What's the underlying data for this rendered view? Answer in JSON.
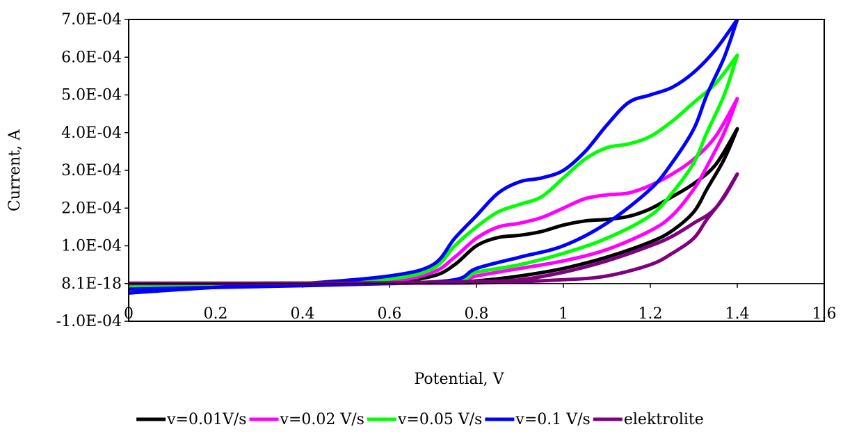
{
  "chart_data": {
    "type": "line",
    "title": "",
    "xlabel": "Potential,  V",
    "ylabel": "Current, A",
    "xlim": [
      0,
      1.6
    ],
    "ylim": [
      -0.0001,
      0.0007
    ],
    "x_ticks": [
      0,
      0.2,
      0.4,
      0.6,
      0.8,
      1,
      1.2,
      1.4,
      1.6
    ],
    "x_tick_labels": [
      "0",
      "0.2",
      "0.4",
      "0.6",
      "0.8",
      "1",
      "1.2",
      "1.4",
      "1.6"
    ],
    "y_ticks": [
      -0.0001,
      0.0,
      0.0001,
      0.0002,
      0.0003,
      0.0004,
      0.0005,
      0.0006,
      0.0007
    ],
    "y_tick_labels": [
      "-1.0E-04",
      "8.1E-18",
      "1.0E-04",
      "2.0E-04",
      "3.0E-04",
      "4.0E-04",
      "5.0E-04",
      "6.0E-04",
      "7.0E-04"
    ],
    "grid": false,
    "legend_position": "bottom",
    "series": [
      {
        "name": "v=0.01V/s",
        "color": "#000000",
        "forward": [
          [
            0,
            -5e-06
          ],
          [
            0.2,
            -2e-06
          ],
          [
            0.4,
            0.0
          ],
          [
            0.6,
            5e-06
          ],
          [
            0.7,
            2e-05
          ],
          [
            0.75,
            5e-05
          ],
          [
            0.8,
            0.0001
          ],
          [
            0.85,
            0.000122
          ],
          [
            0.9,
            0.000128
          ],
          [
            0.95,
            0.000138
          ],
          [
            1.0,
            0.000155
          ],
          [
            1.05,
            0.000166
          ],
          [
            1.1,
            0.00017
          ],
          [
            1.15,
            0.000178
          ],
          [
            1.2,
            0.000198
          ],
          [
            1.25,
            0.00023
          ],
          [
            1.3,
            0.000265
          ],
          [
            1.35,
            0.000315
          ],
          [
            1.4,
            0.00041
          ]
        ],
        "reverse": [
          [
            1.4,
            0.00041
          ],
          [
            1.37,
            0.00033
          ],
          [
            1.33,
            0.00025
          ],
          [
            1.3,
            0.00019
          ],
          [
            1.25,
            0.00014
          ],
          [
            1.2,
            0.00011
          ],
          [
            1.1,
            7e-05
          ],
          [
            1.0,
            4e-05
          ],
          [
            0.9,
            2e-05
          ],
          [
            0.8,
            7e-06
          ],
          [
            0.7,
            2e-06
          ],
          [
            0.5,
            0.0
          ],
          [
            0.2,
            -2e-06
          ],
          [
            0,
            -4e-06
          ]
        ]
      },
      {
        "name": "v=0.02 V/s",
        "color": "#ff00ff",
        "forward": [
          [
            0,
            -5e-06
          ],
          [
            0.2,
            -2e-06
          ],
          [
            0.4,
            0.0
          ],
          [
            0.6,
            6e-06
          ],
          [
            0.7,
            3e-05
          ],
          [
            0.75,
            7e-05
          ],
          [
            0.8,
            0.00012
          ],
          [
            0.85,
            0.00015
          ],
          [
            0.9,
            0.00016
          ],
          [
            0.95,
            0.000175
          ],
          [
            1.0,
            0.0002
          ],
          [
            1.05,
            0.000225
          ],
          [
            1.1,
            0.000235
          ],
          [
            1.15,
            0.00024
          ],
          [
            1.2,
            0.00026
          ],
          [
            1.25,
            0.00029
          ],
          [
            1.3,
            0.00033
          ],
          [
            1.35,
            0.00039
          ],
          [
            1.4,
            0.00049
          ]
        ],
        "reverse": [
          [
            1.4,
            0.00049
          ],
          [
            1.37,
            0.0004
          ],
          [
            1.33,
            0.00031
          ],
          [
            1.3,
            0.00025
          ],
          [
            1.25,
            0.00018
          ],
          [
            1.2,
            0.00014
          ],
          [
            1.1,
            9e-05
          ],
          [
            1.0,
            6e-05
          ],
          [
            0.9,
            4e-05
          ],
          [
            0.8,
            2e-05
          ],
          [
            0.75,
            5e-06
          ],
          [
            0.6,
            0.0
          ],
          [
            0.3,
            -3e-06
          ],
          [
            0,
            -5e-06
          ]
        ]
      },
      {
        "name": "v=0.05 V/s",
        "color": "#00ff00",
        "forward": [
          [
            0,
            -8e-06
          ],
          [
            0.2,
            -4e-06
          ],
          [
            0.4,
            0.0
          ],
          [
            0.6,
            1.2e-05
          ],
          [
            0.7,
            4e-05
          ],
          [
            0.75,
            0.0001
          ],
          [
            0.8,
            0.00015
          ],
          [
            0.85,
            0.00019
          ],
          [
            0.9,
            0.00021
          ],
          [
            0.95,
            0.00023
          ],
          [
            1.0,
            0.00028
          ],
          [
            1.05,
            0.00033
          ],
          [
            1.1,
            0.00036
          ],
          [
            1.15,
            0.00037
          ],
          [
            1.2,
            0.00039
          ],
          [
            1.25,
            0.00043
          ],
          [
            1.3,
            0.00048
          ],
          [
            1.35,
            0.00053
          ],
          [
            1.4,
            0.000605
          ]
        ],
        "reverse": [
          [
            1.4,
            0.000605
          ],
          [
            1.37,
            0.0005
          ],
          [
            1.33,
            0.0004
          ],
          [
            1.3,
            0.00032
          ],
          [
            1.25,
            0.00024
          ],
          [
            1.2,
            0.00018
          ],
          [
            1.1,
            0.00012
          ],
          [
            1.0,
            8e-05
          ],
          [
            0.9,
            5e-05
          ],
          [
            0.8,
            3e-05
          ],
          [
            0.76,
            1e-05
          ],
          [
            0.6,
            0.0
          ],
          [
            0.3,
            -4e-06
          ],
          [
            0,
            -8e-06
          ]
        ]
      },
      {
        "name": "v=0.1 V/s",
        "color": "#0000ff",
        "forward": [
          [
            0,
            -2.5e-05
          ],
          [
            0.2,
            -1e-05
          ],
          [
            0.4,
            0.0
          ],
          [
            0.6,
            2e-05
          ],
          [
            0.7,
            5e-05
          ],
          [
            0.75,
            0.00012
          ],
          [
            0.8,
            0.00018
          ],
          [
            0.85,
            0.00024
          ],
          [
            0.9,
            0.00027
          ],
          [
            0.95,
            0.00028
          ],
          [
            1.0,
            0.0003
          ],
          [
            1.05,
            0.00035
          ],
          [
            1.1,
            0.00042
          ],
          [
            1.15,
            0.00048
          ],
          [
            1.2,
            0.0005
          ],
          [
            1.25,
            0.00052
          ],
          [
            1.3,
            0.00056
          ],
          [
            1.35,
            0.00062
          ],
          [
            1.4,
            0.0007
          ]
        ],
        "reverse": [
          [
            1.4,
            0.0007
          ],
          [
            1.37,
            0.0006
          ],
          [
            1.33,
            0.0005
          ],
          [
            1.3,
            0.00041
          ],
          [
            1.25,
            0.00032
          ],
          [
            1.2,
            0.00025
          ],
          [
            1.1,
            0.00016
          ],
          [
            1.0,
            0.0001
          ],
          [
            0.9,
            7e-05
          ],
          [
            0.8,
            4e-05
          ],
          [
            0.75,
            1e-05
          ],
          [
            0.6,
            0.0
          ],
          [
            0.3,
            -8e-06
          ],
          [
            0,
            -1.5e-05
          ]
        ]
      },
      {
        "name": "elektrolite",
        "color": "#800080",
        "forward": [
          [
            0,
            1e-06
          ],
          [
            0.3,
            1e-06
          ],
          [
            0.6,
            2e-06
          ],
          [
            0.8,
            5e-06
          ],
          [
            0.9,
            1e-05
          ],
          [
            1.0,
            3e-05
          ],
          [
            1.1,
            6e-05
          ],
          [
            1.2,
            0.0001
          ],
          [
            1.25,
            0.000125
          ],
          [
            1.3,
            0.00016
          ],
          [
            1.35,
            0.0002
          ],
          [
            1.4,
            0.00029
          ]
        ],
        "reverse": [
          [
            1.4,
            0.00029
          ],
          [
            1.37,
            0.00023
          ],
          [
            1.33,
            0.00017
          ],
          [
            1.3,
            0.00012
          ],
          [
            1.25,
            8e-05
          ],
          [
            1.2,
            5e-05
          ],
          [
            1.1,
            2e-05
          ],
          [
            1.0,
            1e-05
          ],
          [
            0.8,
            2e-06
          ],
          [
            0.5,
            1e-06
          ],
          [
            0,
            0.0
          ]
        ]
      }
    ]
  }
}
